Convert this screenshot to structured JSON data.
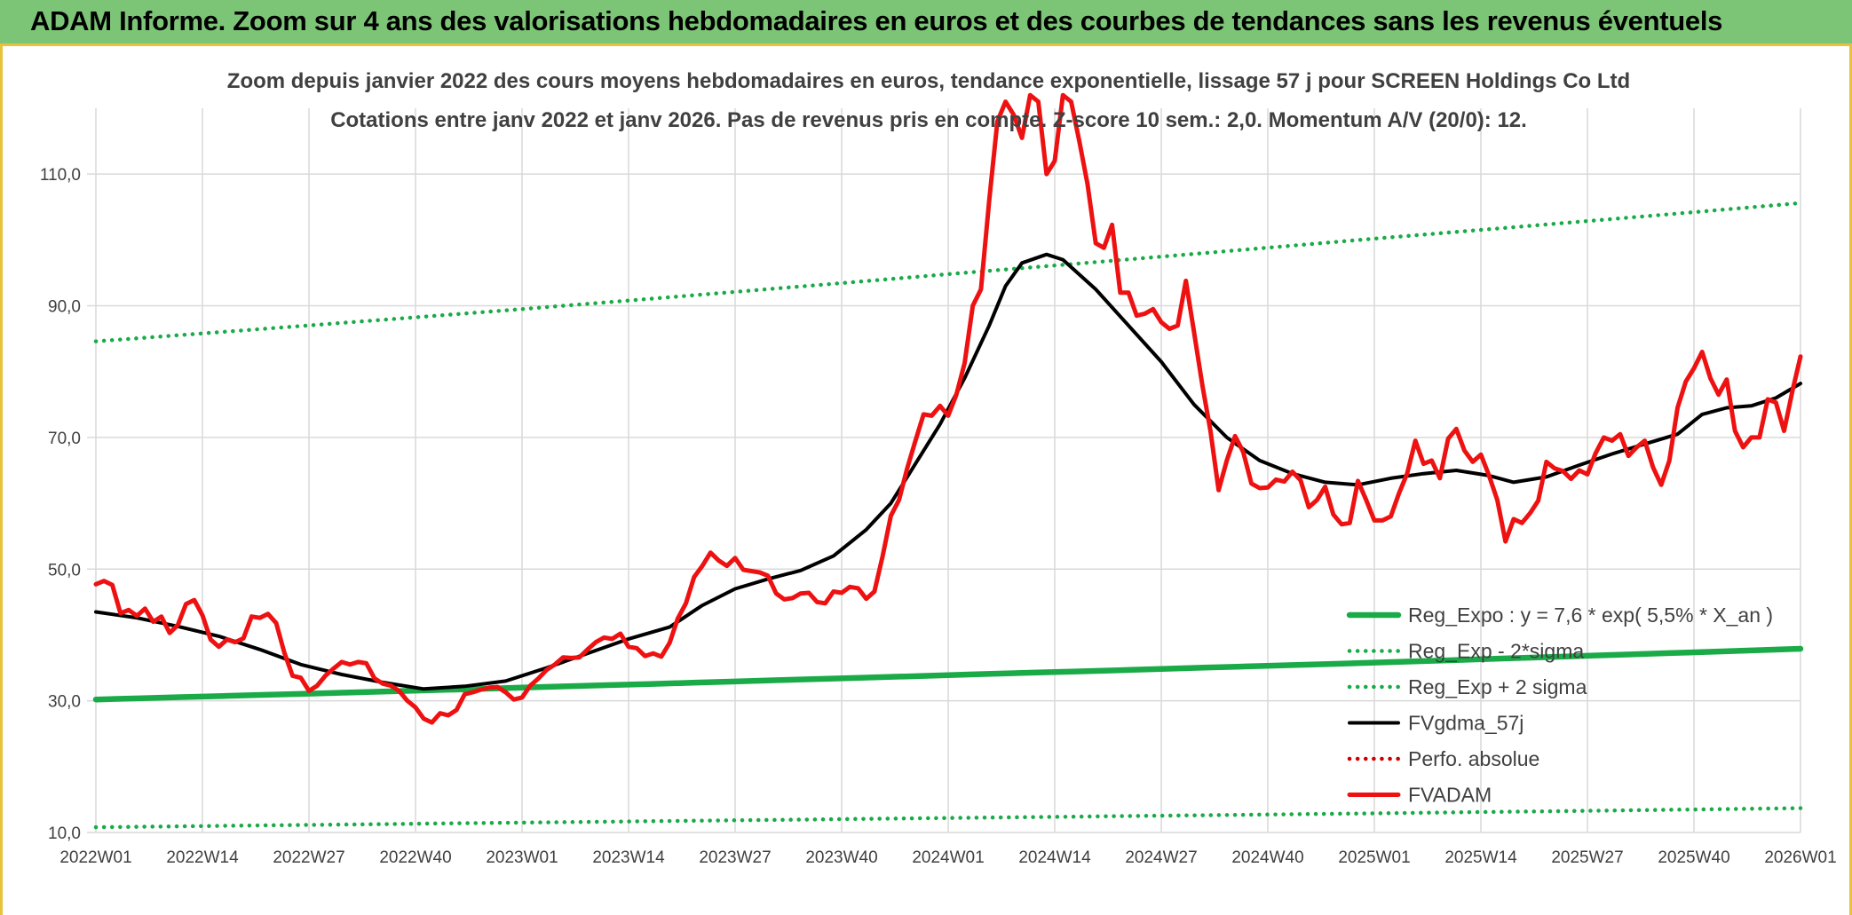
{
  "banner": {
    "title": "ADAM Informe. Zoom sur 4 ans des valorisations hebdomadaires en euros et des courbes de tendances sans les revenus éventuels"
  },
  "colors": {
    "banner_bg": "#7cc576",
    "banner_border": "#e8c23a",
    "reg_expo": "#1aaa48",
    "fvgdma": "#000000",
    "fvadam": "#ee1111",
    "perfo": "#cc0000",
    "grid": "#d9d9d9",
    "text": "#404040"
  },
  "chart_data": {
    "type": "line",
    "title": "Zoom depuis janvier 2022 des cours moyens hebdomadaires en euros, tendance exponentielle, lissage 57 j pour SCREEN Holdings Co Ltd",
    "subtitle": "Cotations entre janv 2022 et janv 2026. Pas de revenus pris en compte. Z-score 10 sem.: 2,0. Momentum A/V (20/0): 12.",
    "xlabel": "",
    "ylabel": "",
    "x_unit": "week index since 2022W01",
    "x_ticks": [
      {
        "week": 0,
        "label": "2022W01"
      },
      {
        "week": 13,
        "label": "2022W14"
      },
      {
        "week": 26,
        "label": "2022W27"
      },
      {
        "week": 39,
        "label": "2022W40"
      },
      {
        "week": 52,
        "label": "2023W01"
      },
      {
        "week": 65,
        "label": "2023W14"
      },
      {
        "week": 78,
        "label": "2023W27"
      },
      {
        "week": 91,
        "label": "2023W40"
      },
      {
        "week": 104,
        "label": "2024W01"
      },
      {
        "week": 117,
        "label": "2024W14"
      },
      {
        "week": 130,
        "label": "2024W27"
      },
      {
        "week": 143,
        "label": "2024W40"
      },
      {
        "week": 156,
        "label": "2025W01"
      },
      {
        "week": 169,
        "label": "2025W14"
      },
      {
        "week": 182,
        "label": "2025W27"
      },
      {
        "week": 195,
        "label": "2025W40"
      },
      {
        "week": 208,
        "label": "2026W01"
      }
    ],
    "xlim": [
      0,
      208
    ],
    "ylim": [
      10,
      120
    ],
    "y_ticks": [
      {
        "value": 10,
        "label": "10,0"
      },
      {
        "value": 30,
        "label": "30,0"
      },
      {
        "value": 50,
        "label": "50,0"
      },
      {
        "value": 70,
        "label": "70,0"
      },
      {
        "value": 90,
        "label": "90,0"
      },
      {
        "value": 110,
        "label": "110,0"
      }
    ],
    "grid": true,
    "legend_position": "bottom-right",
    "series": [
      {
        "name": "Reg_Expo : y = 7,6 * exp( 5,5% *  X_an )",
        "style": "solid-thick",
        "color": "#1aaa48",
        "points": [
          [
            0,
            30.2
          ],
          [
            52,
            32.0
          ],
          [
            104,
            33.9
          ],
          [
            156,
            35.8
          ],
          [
            208,
            37.9
          ]
        ]
      },
      {
        "name": "Reg_Exp - 2*sigma",
        "style": "dotted",
        "color": "#1aaa48",
        "points": [
          [
            0,
            10.8
          ],
          [
            52,
            11.5
          ],
          [
            104,
            12.2
          ],
          [
            156,
            12.9
          ],
          [
            208,
            13.7
          ]
        ]
      },
      {
        "name": "Reg_Exp + 2 sigma",
        "style": "dotted",
        "color": "#1aaa48",
        "points": [
          [
            0,
            84.6
          ],
          [
            52,
            89.5
          ],
          [
            104,
            94.8
          ],
          [
            156,
            100.2
          ],
          [
            208,
            105.6
          ]
        ]
      },
      {
        "name": "FVgdma_57j",
        "style": "solid",
        "color": "#000000",
        "points": [
          [
            0,
            43.5
          ],
          [
            5,
            42.6
          ],
          [
            10,
            41.3
          ],
          [
            15,
            39.8
          ],
          [
            20,
            37.8
          ],
          [
            25,
            35.5
          ],
          [
            30,
            34.0
          ],
          [
            35,
            32.8
          ],
          [
            40,
            31.8
          ],
          [
            45,
            32.2
          ],
          [
            50,
            33.0
          ],
          [
            55,
            35.0
          ],
          [
            60,
            37.2
          ],
          [
            65,
            39.4
          ],
          [
            70,
            41.2
          ],
          [
            74,
            44.5
          ],
          [
            78,
            47.0
          ],
          [
            82,
            48.5
          ],
          [
            86,
            49.8
          ],
          [
            90,
            52.0
          ],
          [
            94,
            56.0
          ],
          [
            97,
            60.0
          ],
          [
            100,
            66.0
          ],
          [
            103,
            72.0
          ],
          [
            106,
            79.0
          ],
          [
            109,
            87.0
          ],
          [
            111,
            93.0
          ],
          [
            113,
            96.5
          ],
          [
            116,
            97.8
          ],
          [
            118,
            97.0
          ],
          [
            122,
            92.5
          ],
          [
            126,
            87.0
          ],
          [
            130,
            81.5
          ],
          [
            134,
            75.0
          ],
          [
            138,
            70.0
          ],
          [
            142,
            66.5
          ],
          [
            146,
            64.5
          ],
          [
            150,
            63.2
          ],
          [
            154,
            62.8
          ],
          [
            158,
            63.8
          ],
          [
            162,
            64.5
          ],
          [
            166,
            65.0
          ],
          [
            170,
            64.2
          ],
          [
            173,
            63.2
          ],
          [
            177,
            64.0
          ],
          [
            181,
            65.8
          ],
          [
            185,
            67.5
          ],
          [
            189,
            69.0
          ],
          [
            193,
            70.5
          ],
          [
            196,
            73.5
          ],
          [
            199,
            74.5
          ],
          [
            202,
            74.8
          ],
          [
            205,
            76.0
          ],
          [
            208,
            78.2
          ]
        ]
      },
      {
        "name": "Perfo. absolue",
        "style": "dotted",
        "color": "#cc0000",
        "points": []
      },
      {
        "name": "FVADAM",
        "style": "solid-thick",
        "color": "#ee1111",
        "points": [
          [
            0,
            47.7
          ],
          [
            1,
            48.2
          ],
          [
            2,
            47.6
          ],
          [
            3,
            43.3
          ],
          [
            4,
            43.8
          ],
          [
            5,
            42.9
          ],
          [
            6,
            44.0
          ],
          [
            7,
            42.0
          ],
          [
            8,
            42.8
          ],
          [
            9,
            40.3
          ],
          [
            10,
            41.5
          ],
          [
            11,
            44.7
          ],
          [
            12,
            45.3
          ],
          [
            13,
            43.0
          ],
          [
            14,
            39.3
          ],
          [
            15,
            38.2
          ],
          [
            16,
            39.3
          ],
          [
            17,
            38.9
          ],
          [
            18,
            39.5
          ],
          [
            19,
            42.8
          ],
          [
            20,
            42.6
          ],
          [
            21,
            43.2
          ],
          [
            22,
            41.8
          ],
          [
            23,
            37.3
          ],
          [
            24,
            33.8
          ],
          [
            25,
            33.5
          ],
          [
            26,
            31.5
          ],
          [
            27,
            32.3
          ],
          [
            28,
            33.8
          ],
          [
            29,
            34.9
          ],
          [
            30,
            35.9
          ],
          [
            31,
            35.5
          ],
          [
            32,
            35.9
          ],
          [
            33,
            35.7
          ],
          [
            34,
            33.4
          ],
          [
            35,
            32.6
          ],
          [
            36,
            32.3
          ],
          [
            37,
            31.5
          ],
          [
            38,
            30.0
          ],
          [
            39,
            29.0
          ],
          [
            40,
            27.3
          ],
          [
            41,
            26.7
          ],
          [
            42,
            28.1
          ],
          [
            43,
            27.8
          ],
          [
            44,
            28.6
          ],
          [
            45,
            31.0
          ],
          [
            46,
            31.3
          ],
          [
            47,
            31.7
          ],
          [
            48,
            32.0
          ],
          [
            49,
            32.1
          ],
          [
            50,
            31.3
          ],
          [
            51,
            30.2
          ],
          [
            52,
            30.5
          ],
          [
            53,
            32.3
          ],
          [
            54,
            33.4
          ],
          [
            55,
            34.7
          ],
          [
            56,
            35.5
          ],
          [
            57,
            36.6
          ],
          [
            58,
            36.5
          ],
          [
            59,
            36.6
          ],
          [
            60,
            37.8
          ],
          [
            61,
            38.9
          ],
          [
            62,
            39.6
          ],
          [
            63,
            39.4
          ],
          [
            64,
            40.2
          ],
          [
            65,
            38.2
          ],
          [
            66,
            38.0
          ],
          [
            67,
            36.8
          ],
          [
            68,
            37.2
          ],
          [
            69,
            36.7
          ],
          [
            70,
            38.8
          ],
          [
            71,
            42.5
          ],
          [
            72,
            44.8
          ],
          [
            73,
            48.8
          ],
          [
            74,
            50.5
          ],
          [
            75,
            52.5
          ],
          [
            76,
            51.3
          ],
          [
            77,
            50.5
          ],
          [
            78,
            51.7
          ],
          [
            79,
            49.9
          ],
          [
            80,
            49.7
          ],
          [
            81,
            49.5
          ],
          [
            82,
            49.0
          ],
          [
            83,
            46.3
          ],
          [
            84,
            45.4
          ],
          [
            85,
            45.6
          ],
          [
            86,
            46.3
          ],
          [
            87,
            46.4
          ],
          [
            88,
            45.0
          ],
          [
            89,
            44.8
          ],
          [
            90,
            46.6
          ],
          [
            91,
            46.4
          ],
          [
            92,
            47.3
          ],
          [
            93,
            47.1
          ],
          [
            94,
            45.5
          ],
          [
            95,
            46.6
          ],
          [
            96,
            52.0
          ],
          [
            97,
            58.1
          ],
          [
            98,
            60.5
          ],
          [
            99,
            65.3
          ],
          [
            100,
            69.5
          ],
          [
            101,
            73.5
          ],
          [
            102,
            73.3
          ],
          [
            103,
            74.8
          ],
          [
            104,
            73.3
          ],
          [
            105,
            76.5
          ],
          [
            106,
            81.3
          ],
          [
            107,
            90.0
          ],
          [
            108,
            92.5
          ],
          [
            109,
            106.0
          ],
          [
            110,
            118.0
          ],
          [
            111,
            121.0
          ],
          [
            112,
            119.0
          ],
          [
            113,
            115.5
          ],
          [
            114,
            122.0
          ],
          [
            115,
            121.0
          ],
          [
            116,
            110.0
          ],
          [
            117,
            112.0
          ],
          [
            118,
            122.0
          ],
          [
            119,
            121.0
          ],
          [
            120,
            115.0
          ],
          [
            121,
            108.5
          ],
          [
            122,
            99.5
          ],
          [
            123,
            98.8
          ],
          [
            124,
            102.3
          ],
          [
            125,
            92.0
          ],
          [
            126,
            92.0
          ],
          [
            127,
            88.5
          ],
          [
            128,
            88.8
          ],
          [
            129,
            89.5
          ],
          [
            130,
            87.5
          ],
          [
            131,
            86.5
          ],
          [
            132,
            87.0
          ],
          [
            133,
            93.8
          ],
          [
            134,
            86.0
          ],
          [
            135,
            78.0
          ],
          [
            136,
            71.0
          ],
          [
            137,
            62.0
          ],
          [
            138,
            66.5
          ],
          [
            139,
            70.2
          ],
          [
            140,
            67.8
          ],
          [
            141,
            63.0
          ],
          [
            142,
            62.3
          ],
          [
            143,
            62.4
          ],
          [
            144,
            63.6
          ],
          [
            145,
            63.3
          ],
          [
            146,
            64.8
          ],
          [
            147,
            63.5
          ],
          [
            148,
            59.4
          ],
          [
            149,
            60.5
          ],
          [
            150,
            62.5
          ],
          [
            151,
            58.3
          ],
          [
            152,
            56.8
          ],
          [
            153,
            57.0
          ],
          [
            154,
            63.4
          ],
          [
            155,
            60.5
          ],
          [
            156,
            57.4
          ],
          [
            157,
            57.4
          ],
          [
            158,
            58.0
          ],
          [
            159,
            61.5
          ],
          [
            160,
            64.5
          ],
          [
            161,
            69.5
          ],
          [
            162,
            66.0
          ],
          [
            163,
            66.5
          ],
          [
            164,
            63.8
          ],
          [
            165,
            69.8
          ],
          [
            166,
            71.3
          ],
          [
            167,
            68.0
          ],
          [
            168,
            66.3
          ],
          [
            169,
            67.4
          ],
          [
            170,
            64.2
          ],
          [
            171,
            60.5
          ],
          [
            172,
            54.2
          ],
          [
            173,
            57.6
          ],
          [
            174,
            57.0
          ],
          [
            175,
            58.5
          ],
          [
            176,
            60.4
          ],
          [
            177,
            66.3
          ],
          [
            178,
            65.3
          ],
          [
            179,
            64.9
          ],
          [
            180,
            63.7
          ],
          [
            181,
            65.0
          ],
          [
            182,
            64.4
          ],
          [
            183,
            67.6
          ],
          [
            184,
            70.0
          ],
          [
            185,
            69.5
          ],
          [
            186,
            70.5
          ],
          [
            187,
            67.2
          ],
          [
            188,
            68.5
          ],
          [
            189,
            69.5
          ],
          [
            190,
            65.5
          ],
          [
            191,
            62.8
          ],
          [
            192,
            66.5
          ],
          [
            193,
            74.5
          ],
          [
            194,
            78.5
          ],
          [
            195,
            80.5
          ],
          [
            196,
            83.0
          ],
          [
            197,
            79.0
          ],
          [
            198,
            76.5
          ],
          [
            199,
            78.8
          ],
          [
            200,
            71.0
          ],
          [
            201,
            68.5
          ],
          [
            202,
            70.0
          ],
          [
            203,
            70.0
          ],
          [
            204,
            75.8
          ],
          [
            205,
            75.3
          ],
          [
            206,
            71.0
          ],
          [
            207,
            77.0
          ],
          [
            208,
            82.3
          ]
        ]
      }
    ]
  }
}
